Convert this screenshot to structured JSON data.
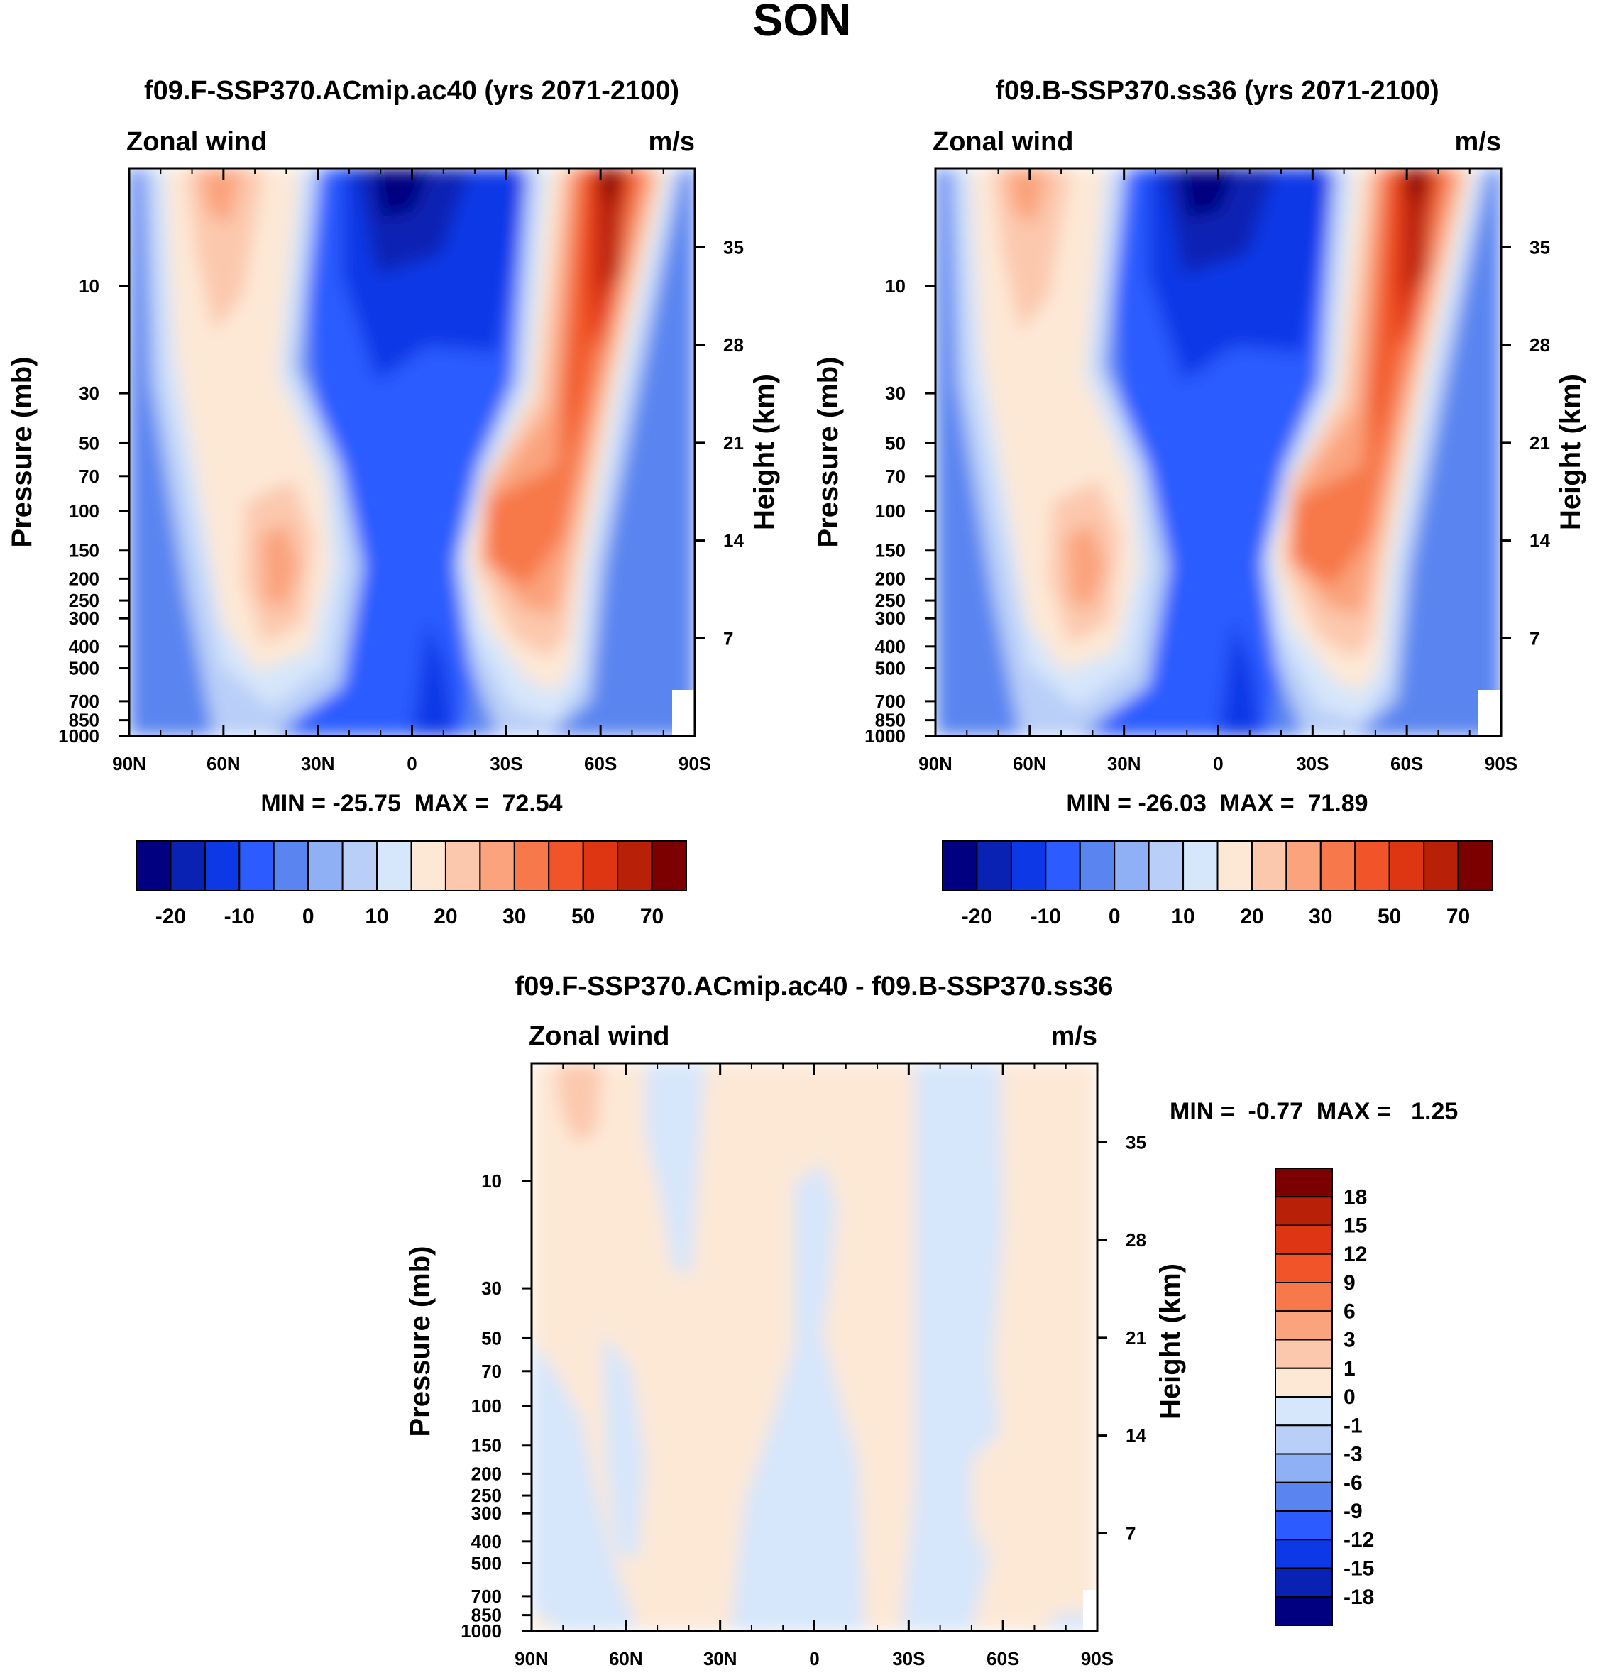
{
  "figure_title": "SON",
  "chart_data": [
    {
      "type": "contour",
      "title": "f09.F-SSP370.ACmip.ac40 (yrs 2071-2100)",
      "left_label": "Zonal wind",
      "right_label": "m/s",
      "ylabel": "Pressure (mb)",
      "y2label": "Height (km)",
      "x_ticks": [
        "90N",
        "60N",
        "30N",
        "0",
        "30S",
        "60S",
        "90S"
      ],
      "pressure_ticks": [
        "10",
        "30",
        "50",
        "70",
        "100",
        "150",
        "200",
        "250",
        "300",
        "400",
        "500",
        "700",
        "850",
        "1000"
      ],
      "height_ticks": [
        "35",
        "28",
        "21",
        "14",
        "7"
      ],
      "stats": "MIN = -25.75  MAX =  72.54",
      "min": -25.75,
      "max": 72.54,
      "colorbar_labels": [
        "-20",
        "-10",
        "0",
        "10",
        "20",
        "30",
        "50",
        "70"
      ]
    },
    {
      "type": "contour",
      "title": "f09.B-SSP370.ss36 (yrs 2071-2100)",
      "left_label": "Zonal wind",
      "right_label": "m/s",
      "ylabel": "Pressure (mb)",
      "y2label": "Height (km)",
      "x_ticks": [
        "90N",
        "60N",
        "30N",
        "0",
        "30S",
        "60S",
        "90S"
      ],
      "pressure_ticks": [
        "10",
        "30",
        "50",
        "70",
        "100",
        "150",
        "200",
        "250",
        "300",
        "400",
        "500",
        "700",
        "850",
        "1000"
      ],
      "height_ticks": [
        "35",
        "28",
        "21",
        "14",
        "7"
      ],
      "stats": "MIN = -26.03  MAX =  71.89",
      "min": -26.03,
      "max": 71.89,
      "colorbar_labels": [
        "-20",
        "-10",
        "0",
        "10",
        "20",
        "30",
        "50",
        "70"
      ]
    },
    {
      "type": "contour",
      "title": "f09.F-SSP370.ACmip.ac40 - f09.B-SSP370.ss36",
      "left_label": "Zonal wind",
      "right_label": "m/s",
      "ylabel": "Pressure (mb)",
      "y2label": "Height (km)",
      "x_ticks": [
        "90N",
        "60N",
        "30N",
        "0",
        "30S",
        "60S",
        "90S"
      ],
      "pressure_ticks": [
        "10",
        "30",
        "50",
        "70",
        "100",
        "150",
        "200",
        "250",
        "300",
        "400",
        "500",
        "700",
        "850",
        "1000"
      ],
      "height_ticks": [
        "35",
        "28",
        "21",
        "14",
        "7"
      ],
      "stats": "MIN =  -0.77  MAX =   1.25",
      "min": -0.77,
      "max": 1.25,
      "colorbar_labels": [
        "18",
        "15",
        "12",
        "9",
        "6",
        "3",
        "1",
        "0",
        "-1",
        "-3",
        "-6",
        "-9",
        "-12",
        "-15",
        "-18"
      ]
    }
  ],
  "colors": {
    "palette": [
      "#000080",
      "#0a22b4",
      "#0d38e6",
      "#2c5bff",
      "#5a85f0",
      "#8fb0f5",
      "#b9cff8",
      "#d6e6fb",
      "#fde8d6",
      "#fcc8ad",
      "#faa37d",
      "#f7784a",
      "#f15428",
      "#de3612",
      "#b82008",
      "#7d0000"
    ]
  }
}
